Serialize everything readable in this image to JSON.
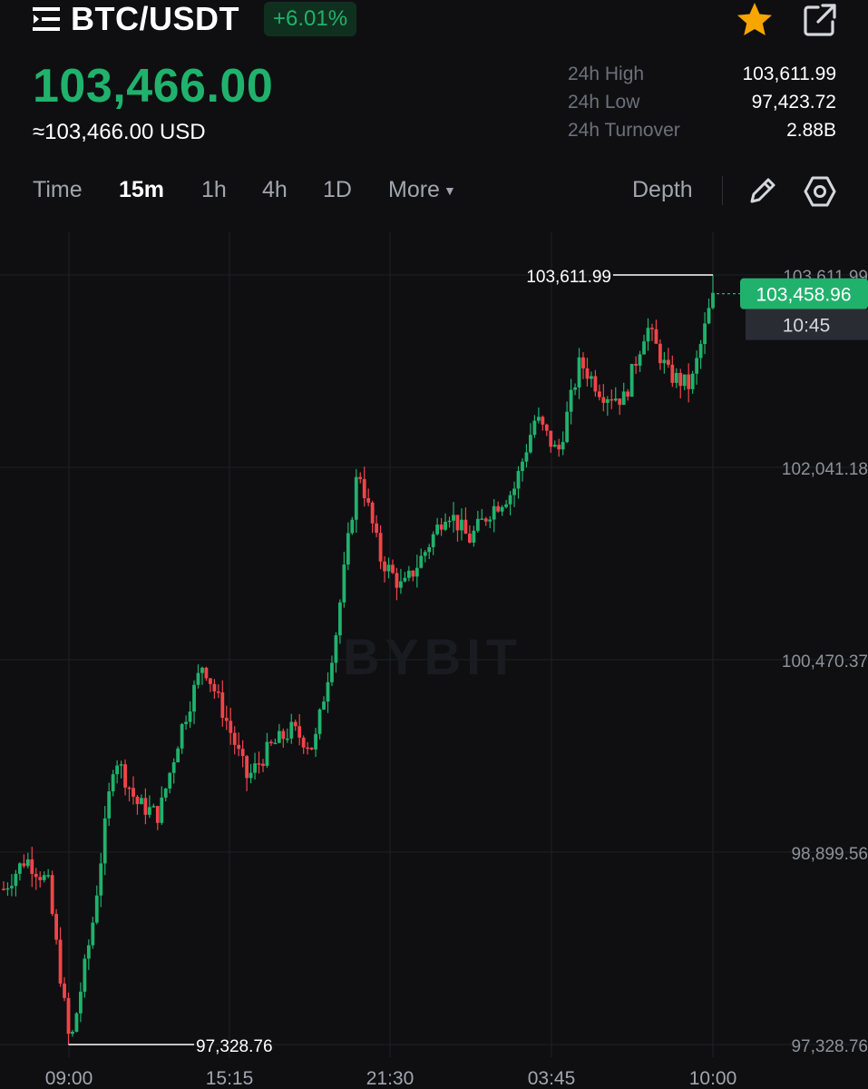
{
  "header": {
    "pair": "BTC/USDT",
    "change_pct": "+6.01%",
    "icons": {
      "menu": "menu-list-icon",
      "favorite": "star-icon",
      "share": "share-icon"
    }
  },
  "price": {
    "last": "103,466.00",
    "usd": "≈103,466.00 USD"
  },
  "stats": [
    {
      "label": "24h High",
      "value": "103,611.99"
    },
    {
      "label": "24h Low",
      "value": "97,423.72"
    },
    {
      "label": "24h Turnover",
      "value": "2.88B"
    }
  ],
  "tabs": {
    "time": "Time",
    "m15": "15m",
    "h1": "1h",
    "h4": "4h",
    "d1": "1D",
    "more": "More",
    "depth": "Depth",
    "active": "15m"
  },
  "colors": {
    "up": "#20b26c",
    "down": "#ef454a",
    "favorite": "#f7a600",
    "background": "#0f0f12"
  },
  "chart_data": {
    "type": "candlestick",
    "interval": "15m",
    "y_axis_labels": [
      "103,611.99",
      "102,041.18",
      "100,470.37",
      "98,899.56",
      "97,328.76"
    ],
    "y_axis_values": [
      103611.99,
      102041.18,
      100470.37,
      98899.56,
      97328.76
    ],
    "ylim": [
      97328.76,
      103611.99
    ],
    "x_axis_labels": [
      "09:00",
      "15:15",
      "21:30",
      "03:45",
      "10:00"
    ],
    "high_marker": "103,611.99",
    "low_marker": "97,328.76",
    "current_price_label": "103,458.96",
    "countdown": "10:45",
    "watermark": "BYBIT",
    "key_points": [
      98600,
      98850,
      98650,
      97300,
      98300,
      99700,
      99300,
      99200,
      99900,
      100450,
      100000,
      99500,
      99750,
      99900,
      99750,
      100700,
      102050,
      101300,
      101050,
      101350,
      101700,
      101450,
      101700,
      101850,
      102450,
      102150,
      102900,
      102650,
      102600,
      103200,
      102800,
      102700,
      103450
    ]
  }
}
